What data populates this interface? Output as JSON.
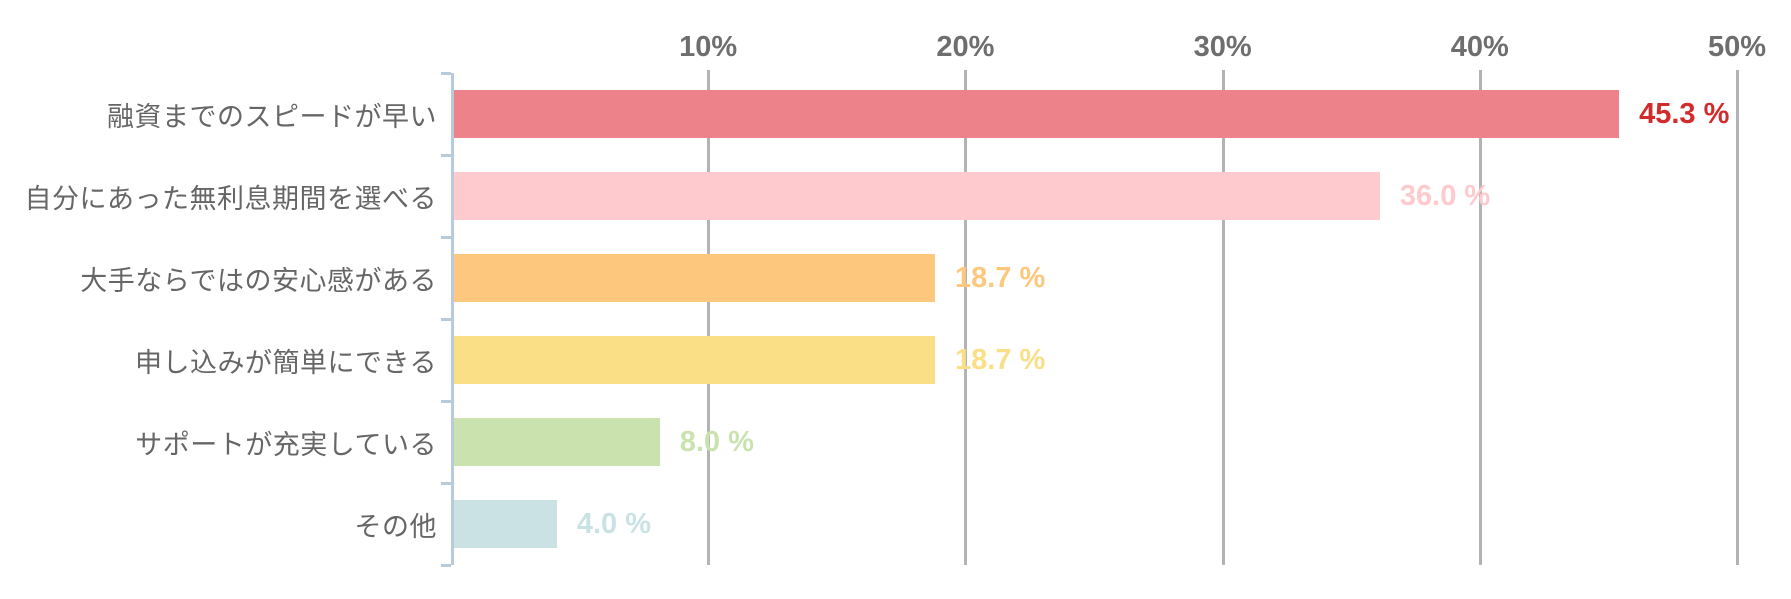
{
  "chart_data": {
    "type": "bar",
    "orientation": "horizontal",
    "title": "",
    "xlabel": "",
    "ylabel": "",
    "categories": [
      "融資までのスピードが早い",
      "自分にあった無利息期間を選べる",
      "大手ならではの安心感がある",
      "申し込みが簡単にできる",
      "サポートが充実している",
      "その他"
    ],
    "values": [
      45.3,
      36.0,
      18.7,
      18.7,
      8.0,
      4.0
    ],
    "value_labels": [
      "45.3 %",
      "36.0 %",
      "18.7 %",
      "18.7 %",
      "8.0 %",
      "4.0 %"
    ],
    "bar_colors": [
      "#ed828a",
      "#fecacd",
      "#fdc87d",
      "#fadf86",
      "#cae2ad",
      "#cae2e4"
    ],
    "value_label_colors": [
      "#d22b2b",
      "#fecacd",
      "#fdc87d",
      "#fadf86",
      "#cae2ad",
      "#cae2e4"
    ],
    "xlim": [
      0,
      50
    ],
    "x_ticks": [
      {
        "label": "10%",
        "value": 10
      },
      {
        "label": "20%",
        "value": 20
      },
      {
        "label": "30%",
        "value": 30
      },
      {
        "label": "40%",
        "value": 40
      },
      {
        "label": "50%",
        "value": 50
      }
    ],
    "grid": true,
    "legend": "none",
    "colors": {
      "axis": "#b9cbda",
      "gridline": "#b3b3b3",
      "tick_label": "#6e6e6e",
      "category_label": "#666666",
      "background": "#ffffff"
    }
  }
}
